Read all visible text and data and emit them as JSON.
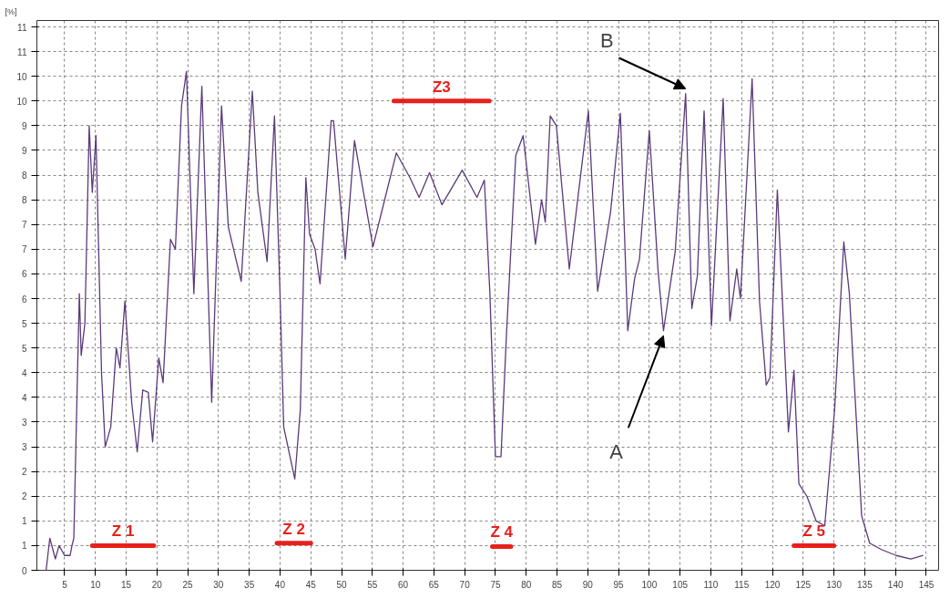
{
  "chart_data": {
    "type": "line",
    "ylabel": "[%]",
    "xlim": [
      0.5,
      147
    ],
    "xticks": [
      5,
      10,
      15,
      20,
      25,
      30,
      35,
      40,
      45,
      50,
      55,
      60,
      65,
      70,
      75,
      80,
      85,
      90,
      95,
      100,
      105,
      110,
      115,
      120,
      125,
      130,
      135,
      140,
      145
    ],
    "ylim": [
      0,
      11.13
    ],
    "yticks": [
      0,
      {
        "value": 0.5,
        "label": "1"
      },
      1,
      {
        "value": 1.5,
        "label": "2"
      },
      2,
      {
        "value": 2.5,
        "label": "3"
      },
      3,
      {
        "value": 3.5,
        "label": "4"
      },
      4,
      {
        "value": 4.5,
        "label": "5"
      },
      5,
      {
        "value": 5.5,
        "label": "6"
      },
      6,
      {
        "value": 6.5,
        "label": "7"
      },
      7,
      {
        "value": 7.5,
        "label": "8"
      },
      8,
      {
        "value": 8.5,
        "label": "9"
      },
      9,
      {
        "value": 9.5,
        "label": "10"
      },
      10,
      {
        "value": 10.5,
        "label": "11"
      },
      11
    ],
    "grid": true,
    "line_style": "solid",
    "series": [
      {
        "color": "#5b3a7a",
        "x": [
          2,
          2.6,
          3.5,
          4.1,
          5,
          5.9,
          6.2,
          6.5,
          7.1,
          7.4,
          7.7,
          8.3,
          9.0,
          9.5,
          10.1,
          11,
          11.6,
          12.5,
          13.4,
          14.0,
          14.8,
          15.9,
          16.8,
          17.7,
          18.6,
          19.3,
          20.3,
          21.0,
          22.2,
          23.0,
          24.0,
          24.8,
          26.0,
          27.3,
          28.9,
          30.5,
          31.6,
          33.7,
          35.5,
          36.4,
          37.9,
          39.1,
          40.0,
          40.6,
          42.4,
          43.3,
          44.2,
          44.8,
          45.7,
          46.5,
          48.3,
          48.7,
          50.6,
          52.1,
          55.1,
          57.2,
          58.9,
          61.1,
          62.6,
          64.3,
          66.3,
          69.6,
          72.0,
          73.2,
          74.1,
          75.0,
          75.9,
          76.8,
          78.3,
          79.5,
          81.5,
          82.5,
          83.1,
          83.9,
          84.9,
          87.0,
          90.1,
          91.6,
          93.7,
          95.3,
          96.5,
          97.6,
          98.4,
          100.0,
          101.4,
          102.3,
          104.2,
          105.9,
          106.9,
          107.8,
          108.9,
          110.1,
          112.0,
          113.1,
          114.2,
          114.8,
          116.7,
          117.9,
          119.0,
          119.6,
          120.8,
          122.6,
          123.5,
          124.3,
          125.6,
          127.1,
          128.5,
          130.1,
          131.6,
          132.5,
          134.5,
          135.8,
          137.7,
          140.1,
          142.5,
          144.5
        ],
        "values": [
          0,
          0.65,
          0.23,
          0.5,
          0.3,
          0.3,
          0.5,
          0.65,
          4.0,
          5.6,
          4.35,
          5.0,
          9.0,
          7.65,
          8.8,
          4.0,
          2.5,
          2.9,
          4.5,
          4.1,
          5.45,
          3.4,
          2.4,
          3.65,
          3.6,
          2.6,
          4.3,
          3.8,
          6.7,
          6.5,
          9.4,
          10.1,
          5.6,
          9.8,
          3.4,
          9.4,
          6.95,
          5.85,
          9.7,
          7.65,
          6.25,
          9.2,
          5.6,
          2.9,
          1.85,
          3.25,
          7.95,
          6.8,
          6.5,
          5.8,
          9.1,
          9.1,
          6.3,
          8.7,
          6.55,
          7.6,
          8.45,
          7.95,
          7.55,
          8.05,
          7.4,
          8.1,
          7.55,
          7.9,
          5.6,
          2.3,
          2.3,
          4.8,
          8.4,
          8.8,
          6.6,
          7.5,
          7.05,
          9.2,
          9.0,
          6.1,
          9.3,
          5.65,
          7.25,
          9.25,
          4.85,
          5.9,
          6.3,
          8.9,
          6.1,
          4.85,
          6.45,
          9.65,
          5.3,
          5.95,
          9.3,
          4.95,
          9.55,
          5.05,
          6.1,
          5.5,
          9.95,
          5.45,
          3.75,
          3.9,
          7.7,
          2.8,
          4.05,
          1.75,
          1.5,
          1.0,
          0.9,
          3.25,
          6.65,
          5.6,
          1.1,
          0.55,
          0.42,
          0.3,
          0.23,
          0.3
        ]
      },
      {
        "color": "#e8201c",
        "x": [
          9.5,
          19.5
        ],
        "values": [
          0.5,
          0.5
        ]
      },
      {
        "color": "#e8201c",
        "x": [
          39.5,
          45
        ],
        "values": [
          0.55,
          0.55
        ]
      },
      {
        "color": "#e8201c",
        "x": [
          58.5,
          74
        ],
        "values": [
          9.5,
          9.5
        ]
      },
      {
        "color": "#e8201c",
        "x": [
          74.5,
          77.5
        ],
        "values": [
          0.48,
          0.48
        ]
      },
      {
        "color": "#e8201c",
        "x": [
          123.5,
          130
        ],
        "values": [
          0.5,
          0.5
        ]
      }
    ],
    "annotations": [
      {
        "text": "A",
        "x": 102.3,
        "y": 4.85
      },
      {
        "text": "B",
        "x": 105.9,
        "y": 9.65
      },
      {
        "text": "Z 1",
        "x": 14.5,
        "y": 0.5
      },
      {
        "text": "Z 2",
        "x": 42.25,
        "y": 0.55
      },
      {
        "text": "Z3",
        "x": 66.25,
        "y": 9.5
      },
      {
        "text": "Z 4",
        "x": 76,
        "y": 0.48
      },
      {
        "text": "Z 5",
        "x": 126.75,
        "y": 0.5
      }
    ]
  }
}
